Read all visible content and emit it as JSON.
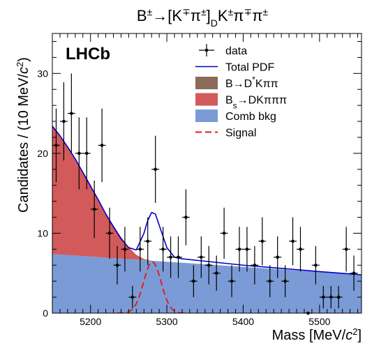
{
  "chart_data": {
    "type": "line",
    "title": "B±→[K∓π±]DK±π∓π±",
    "title_parts": {
      "main": "B",
      "sup1": "±",
      "arrow": "→[K",
      "sup2": "∓",
      "pi": "π",
      "sup3": "±",
      "bracket": "]",
      "sub": "D",
      "tail": "K",
      "sup4": "±",
      "pi2": "π",
      "sup5": "∓",
      "pi3": "π",
      "sup6": "±"
    },
    "watermark": "LHCb",
    "xlabel": "Mass [MeV/c²]",
    "xlabel_parts": {
      "main": "Mass [MeV/",
      "c": "c",
      "sup": "2",
      "close": "]"
    },
    "ylabel": "Candidates / (10 MeV/c²)",
    "ylabel_parts": {
      "main": "Candidates / (10 MeV/",
      "c": "c",
      "sup": "2",
      "close": ")"
    },
    "xlim": [
      5150,
      5555
    ],
    "ylim": [
      0,
      35
    ],
    "x_ticks": [
      5200,
      5300,
      5400,
      5500
    ],
    "x_tick_labels": [
      "5200",
      "5300",
      "5400",
      "5500"
    ],
    "y_ticks": [
      0,
      10,
      20,
      30
    ],
    "y_tick_labels": [
      "0",
      "10",
      "20",
      "30"
    ],
    "legend": [
      {
        "label": "data",
        "kind": "errorbar",
        "color": "#000000"
      },
      {
        "label": "Total PDF",
        "kind": "line",
        "color": "#0000cc"
      },
      {
        "label": "B→D*Kππ",
        "kind": "fill",
        "color": "#8c6a5a"
      },
      {
        "label": "Bs→DKπππ",
        "kind": "fill",
        "color": "#d25a5a"
      },
      {
        "label": "Comb bkg",
        "kind": "fill",
        "color": "#7b9bd6"
      },
      {
        "label": "Signal",
        "kind": "dashed",
        "color": "#e02020"
      }
    ],
    "legend_rich": [
      {
        "main": "data"
      },
      {
        "main": "Total PDF"
      },
      {
        "main": "B→D",
        "sup": "*",
        "tail": "Kππ"
      },
      {
        "main": "B",
        "sub": "s",
        "tail": "→DKπππ"
      },
      {
        "main": "Comb bkg"
      },
      {
        "main": "Signal"
      }
    ],
    "colors": {
      "total": "#0000cc",
      "comb": "#7b9bd6",
      "bs": "#d25a5a",
      "bdstar": "#8c6a5a",
      "signal": "#e02020",
      "data": "#000000"
    },
    "data": {
      "x": [
        5155,
        5165,
        5175,
        5185,
        5195,
        5205,
        5215,
        5225,
        5235,
        5245,
        5255,
        5265,
        5275,
        5285,
        5295,
        5305,
        5315,
        5325,
        5335,
        5345,
        5355,
        5365,
        5375,
        5385,
        5395,
        5405,
        5415,
        5425,
        5435,
        5445,
        5455,
        5465,
        5475,
        5485,
        5495,
        5505,
        5515,
        5525,
        5535,
        5545
      ],
      "y": [
        21,
        24,
        25,
        20,
        20,
        13,
        21,
        10,
        6,
        8,
        2,
        8,
        9,
        18,
        8,
        7,
        7,
        12,
        4,
        7,
        6,
        5,
        10,
        4,
        8,
        8,
        6,
        9,
        4,
        7,
        4,
        9,
        8,
        0,
        6,
        2,
        2,
        2,
        8,
        5
      ],
      "err": [
        4.6,
        4.9,
        5.0,
        4.5,
        4.5,
        3.6,
        4.6,
        3.2,
        2.4,
        2.8,
        1.4,
        2.8,
        3.0,
        4.2,
        2.8,
        2.6,
        2.6,
        3.5,
        2.0,
        2.6,
        2.4,
        2.2,
        3.2,
        2.0,
        2.8,
        2.8,
        2.4,
        3.0,
        2.0,
        2.6,
        2.0,
        3.0,
        2.8,
        0,
        2.4,
        1.4,
        1.4,
        1.4,
        2.8,
        2.2
      ]
    },
    "comb_bkg": {
      "x": [
        5150,
        5555
      ],
      "y": [
        7.4,
        4.8
      ]
    },
    "bs_bkg": {
      "x": [
        5150,
        5160,
        5170,
        5180,
        5190,
        5200,
        5210,
        5220,
        5230,
        5240,
        5250,
        5260,
        5270,
        5280
      ],
      "y": [
        16.0,
        14.9,
        13.6,
        12.2,
        10.6,
        9.0,
        7.3,
        5.6,
        4.1,
        2.7,
        1.5,
        0.6,
        0.15,
        0
      ]
    },
    "signal": {
      "mean": 5281,
      "sigma": 11.5,
      "peak": 6.4
    },
    "total_x": [
      5150,
      5160,
      5170,
      5180,
      5190,
      5200,
      5210,
      5220,
      5230,
      5240,
      5250,
      5260,
      5270,
      5275,
      5280,
      5285,
      5290,
      5300,
      5310,
      5320,
      5340,
      5400,
      5500,
      5555
    ],
    "total_y": [
      23.4,
      22.2,
      20.8,
      19.3,
      17.6,
      15.9,
      14.2,
      12.4,
      10.8,
      9.3,
      8.2,
      7.9,
      10.0,
      11.6,
      12.6,
      12.4,
      11.0,
      8.2,
      7.0,
      6.8,
      6.6,
      6.0,
      5.2,
      4.8
    ]
  }
}
